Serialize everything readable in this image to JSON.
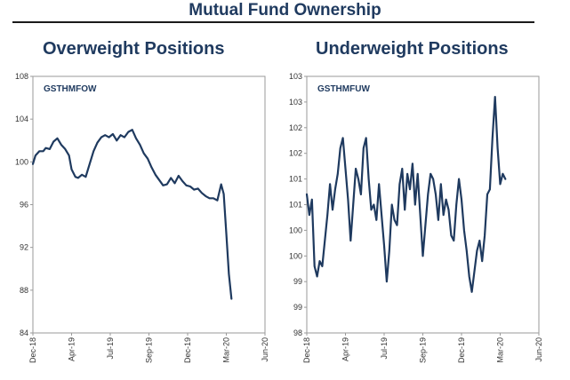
{
  "title": "Mutual Fund Ownership",
  "chart_data": [
    {
      "type": "line",
      "title": "Overweight Positions",
      "series_label": "GSTHMFOW",
      "color": "#1f3a5f",
      "ylim": [
        84,
        108
      ],
      "yticks": [
        "108",
        "104",
        "100",
        "96",
        "92",
        "88",
        "84"
      ],
      "xlim": [
        0,
        18
      ],
      "xticks": [
        "Dec-18",
        "Apr-19",
        "Jul-19",
        "Sep-19",
        "Dec-19",
        "Mar-20",
        "Jun-20"
      ],
      "series": [
        {
          "name": "GSTHMFOW",
          "x": [
            0,
            0.2,
            0.5,
            0.8,
            1.0,
            1.3,
            1.6,
            1.9,
            2.2,
            2.5,
            2.8,
            3.0,
            3.3,
            3.5,
            3.8,
            4.1,
            4.4,
            4.7,
            5.0,
            5.3,
            5.6,
            5.9,
            6.2,
            6.5,
            6.8,
            7.1,
            7.4,
            7.7,
            8.0,
            8.3,
            8.6,
            8.9,
            9.2,
            9.5,
            9.8,
            10.1,
            10.4,
            10.7,
            11.0,
            11.3,
            11.6,
            11.9,
            12.2,
            12.5,
            12.8,
            13.1,
            13.4,
            13.7,
            14.0,
            14.3,
            14.6,
            14.8,
            15.0,
            15.2,
            15.4
          ],
          "values": [
            99.8,
            100.6,
            101.0,
            101.0,
            101.3,
            101.2,
            101.9,
            102.2,
            101.6,
            101.2,
            100.6,
            99.3,
            98.6,
            98.5,
            98.8,
            98.6,
            99.8,
            101.0,
            101.8,
            102.3,
            102.5,
            102.3,
            102.6,
            102.0,
            102.5,
            102.3,
            102.8,
            103.0,
            102.2,
            101.6,
            100.8,
            100.3,
            99.5,
            98.8,
            98.3,
            97.8,
            97.9,
            98.5,
            98.0,
            98.7,
            98.2,
            97.8,
            97.7,
            97.4,
            97.5,
            97.1,
            96.8,
            96.6,
            96.6,
            96.4,
            97.9,
            97.0,
            93.3,
            89.5,
            87.2
          ]
        }
      ]
    },
    {
      "type": "line",
      "title": "Underweight Positions",
      "series_label": "GSTHMFUW",
      "color": "#1f3a5f",
      "ylim": [
        98,
        103
      ],
      "yticks": [
        "103",
        "103",
        "102",
        "102",
        "101",
        "101",
        "100",
        "100",
        "99",
        "99",
        "98"
      ],
      "xlim": [
        0,
        18
      ],
      "xticks": [
        "Dec-18",
        "Apr-19",
        "Jul-19",
        "Sep-19",
        "Dec-19",
        "Mar-20",
        "Jun-20"
      ],
      "series": [
        {
          "name": "GSTHMFUW",
          "x": [
            0,
            0.2,
            0.4,
            0.6,
            0.8,
            1.0,
            1.2,
            1.4,
            1.6,
            1.8,
            2.0,
            2.2,
            2.4,
            2.6,
            2.8,
            3.0,
            3.2,
            3.4,
            3.6,
            3.8,
            4.0,
            4.2,
            4.4,
            4.6,
            4.8,
            5.0,
            5.2,
            5.4,
            5.6,
            5.8,
            6.0,
            6.2,
            6.4,
            6.6,
            6.8,
            7.0,
            7.2,
            7.4,
            7.6,
            7.8,
            8.0,
            8.2,
            8.4,
            8.6,
            8.8,
            9.0,
            9.2,
            9.4,
            9.6,
            9.8,
            10.0,
            10.2,
            10.4,
            10.6,
            10.8,
            11.0,
            11.2,
            11.4,
            11.6,
            11.8,
            12.0,
            12.2,
            12.4,
            12.6,
            12.8,
            13.0,
            13.2,
            13.4,
            13.6,
            13.8,
            14.0,
            14.2,
            14.4,
            14.6,
            14.8,
            15.0,
            15.2,
            15.4
          ],
          "values": [
            100.7,
            100.3,
            100.6,
            99.3,
            99.1,
            99.4,
            99.3,
            99.8,
            100.3,
            100.9,
            100.4,
            100.8,
            101.1,
            101.6,
            101.8,
            101.2,
            100.6,
            99.8,
            100.5,
            101.2,
            101.0,
            100.7,
            101.6,
            101.8,
            101.0,
            100.4,
            100.5,
            100.2,
            100.9,
            100.3,
            99.7,
            99.0,
            99.6,
            100.5,
            100.2,
            100.1,
            100.9,
            101.2,
            100.4,
            101.1,
            100.8,
            101.3,
            100.5,
            101.1,
            100.3,
            99.5,
            100.1,
            100.7,
            101.1,
            101.0,
            100.7,
            100.2,
            100.9,
            100.3,
            100.6,
            100.4,
            99.9,
            99.8,
            100.5,
            101.0,
            100.6,
            100.0,
            99.6,
            99.1,
            98.8,
            99.2,
            99.6,
            99.8,
            99.4,
            99.9,
            100.7,
            100.8,
            101.8,
            102.6,
            101.6,
            100.9,
            101.1,
            101.0
          ]
        }
      ]
    }
  ]
}
